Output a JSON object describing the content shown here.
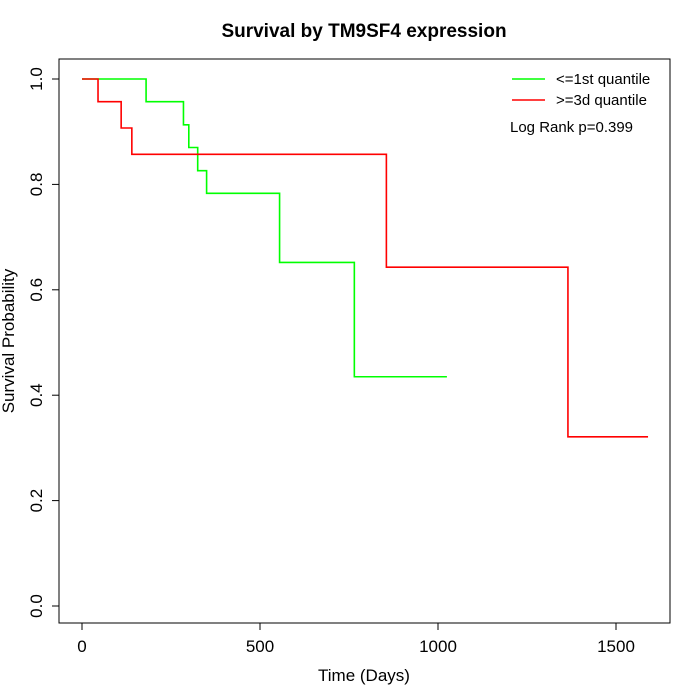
{
  "chart_data": {
    "type": "line",
    "title": "Survival by TM9SF4 expression",
    "xlabel": "Time (Days)",
    "ylabel": "Survival Probability",
    "xlim": [
      0,
      1590
    ],
    "ylim": [
      0,
      1.0
    ],
    "x_ticks": [
      0,
      500,
      1000,
      1500
    ],
    "y_ticks": [
      0.0,
      0.2,
      0.4,
      0.6,
      0.8,
      1.0
    ],
    "x_tick_labels": [
      "0",
      "500",
      "1000",
      "1500"
    ],
    "y_tick_labels": [
      "0.0",
      "0.2",
      "0.4",
      "0.6",
      "0.8",
      "1.0"
    ],
    "grid": false,
    "legend_position": "top-right",
    "annotation": "Log Rank p=0.399",
    "series": [
      {
        "name": "<=1st quantile",
        "color": "#00ff00",
        "step": true,
        "x": [
          0,
          180,
          285,
          300,
          325,
          350,
          555,
          765,
          1025
        ],
        "y": [
          1.0,
          0.957,
          0.913,
          0.87,
          0.826,
          0.783,
          0.652,
          0.435,
          0.435
        ]
      },
      {
        "name": ">=3d quantile",
        "color": "#ff0000",
        "step": true,
        "x": [
          0,
          45,
          110,
          140,
          855,
          1365,
          1590
        ],
        "y": [
          1.0,
          0.957,
          0.907,
          0.857,
          0.643,
          0.321,
          0.321
        ]
      }
    ]
  }
}
